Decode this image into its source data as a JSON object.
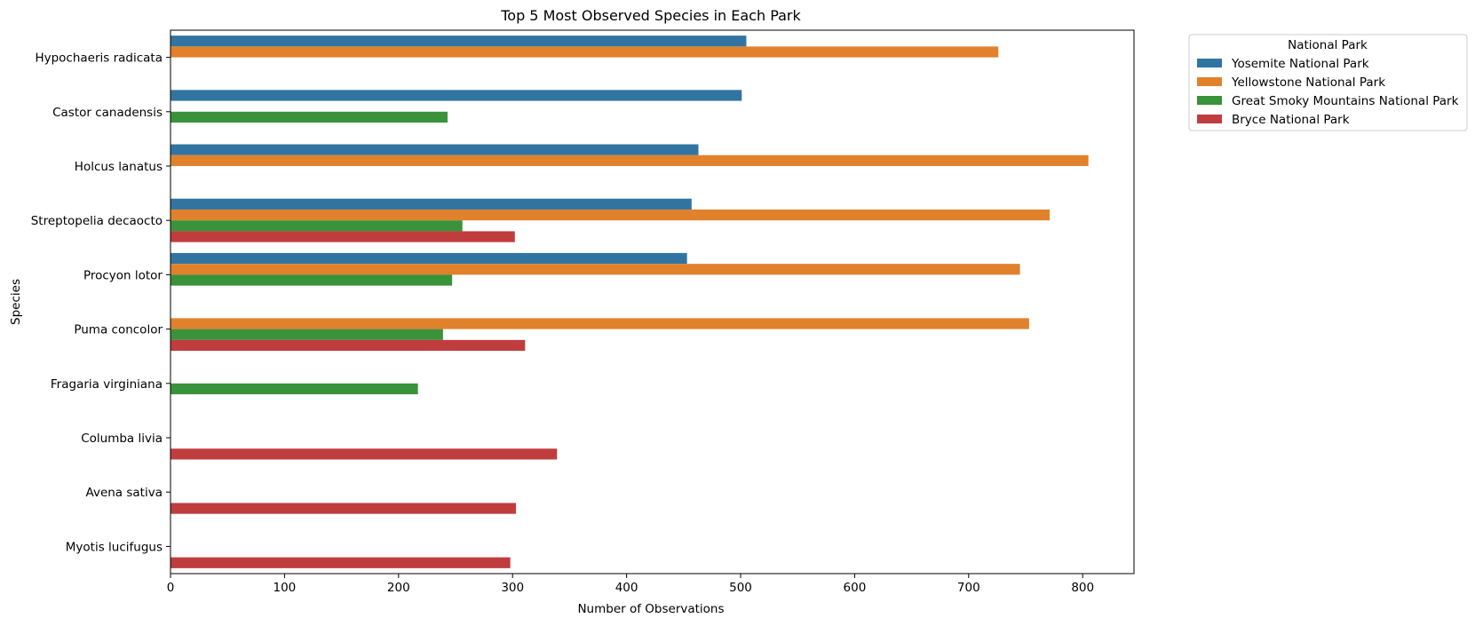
{
  "chart_data": {
    "type": "bar",
    "orientation": "horizontal",
    "title": "Top 5 Most Observed Species in Each Park",
    "xlabel": "Number of Observations",
    "ylabel": "Species",
    "xlim": [
      0,
      845
    ],
    "xticks": [
      0,
      100,
      200,
      300,
      400,
      500,
      600,
      700,
      800
    ],
    "grid": false,
    "legend": {
      "title": "National Park",
      "placement": "outside-top-right"
    },
    "categories": [
      "Hypochaeris radicata",
      "Castor canadensis",
      "Holcus lanatus",
      "Streptopelia decaocto",
      "Procyon lotor",
      "Puma concolor",
      "Fragaria virginiana",
      "Columba livia",
      "Avena sativa",
      "Myotis lucifugus"
    ],
    "series": [
      {
        "name": "Yosemite National Park",
        "color": "#3274a1",
        "values": [
          505,
          501,
          463,
          457,
          453,
          null,
          null,
          null,
          null,
          null
        ]
      },
      {
        "name": "Yellowstone National Park",
        "color": "#e1812c",
        "values": [
          726,
          null,
          805,
          771,
          745,
          753,
          null,
          null,
          null,
          null
        ]
      },
      {
        "name": "Great Smoky Mountains National Park",
        "color": "#3a923a",
        "values": [
          null,
          243,
          null,
          256,
          247,
          239,
          217,
          null,
          null,
          null
        ]
      },
      {
        "name": "Bryce National Park",
        "color": "#c03d3e",
        "values": [
          null,
          null,
          null,
          302,
          null,
          311,
          null,
          339,
          303,
          298
        ]
      }
    ]
  }
}
